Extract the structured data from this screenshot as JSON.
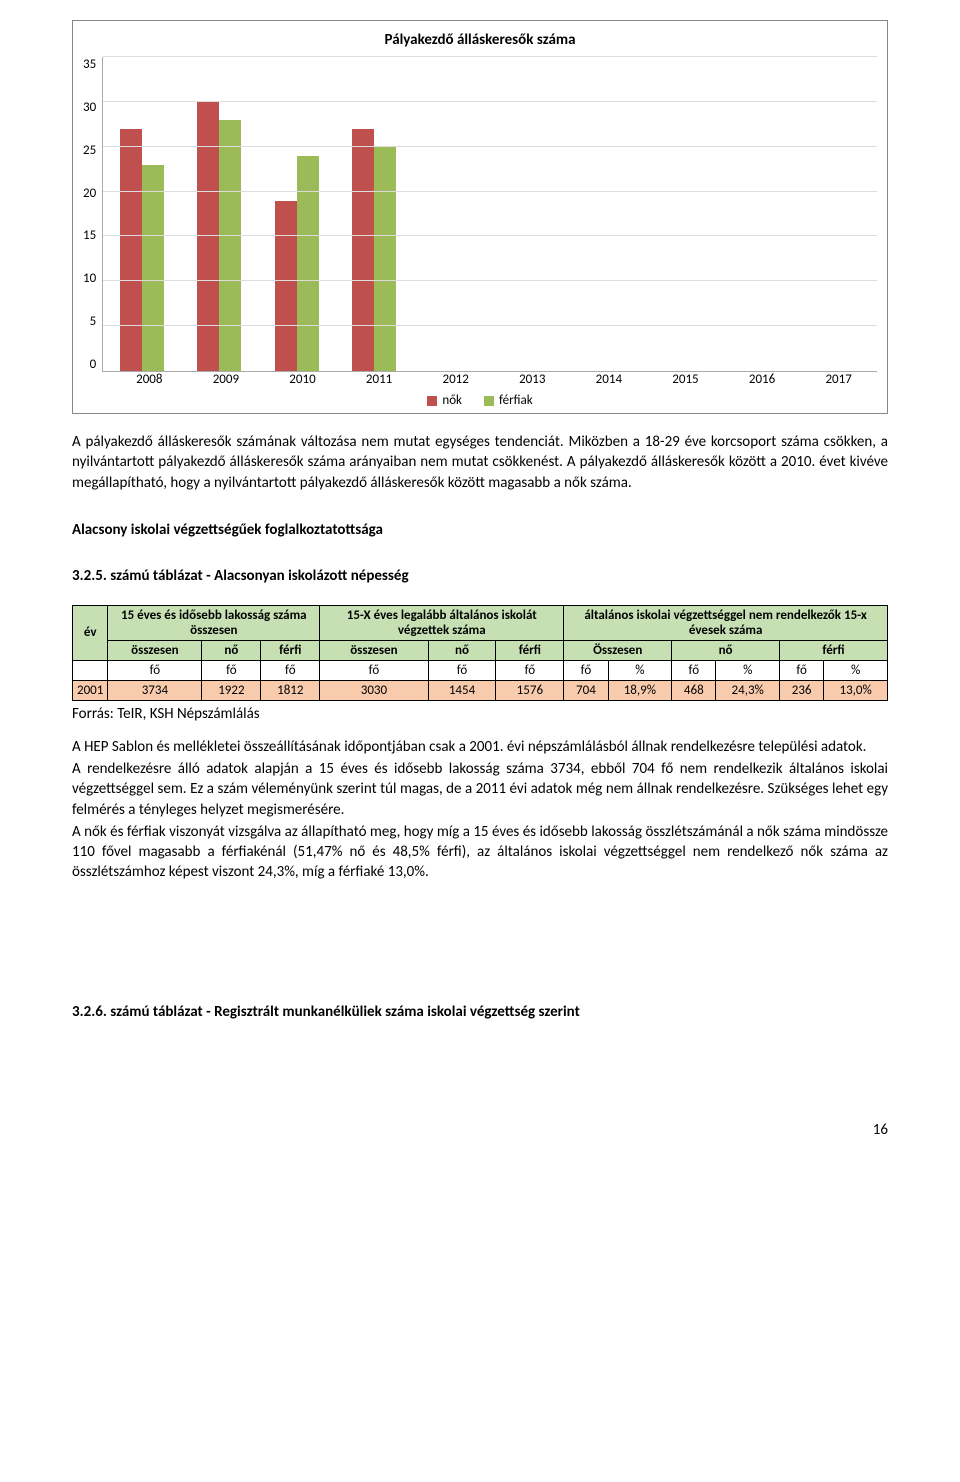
{
  "chart": {
    "title": "Pályakezdő álláskeresők száma",
    "type": "bar",
    "ylim": [
      0,
      35
    ],
    "ytick_step": 5,
    "yticks": [
      "35",
      "30",
      "25",
      "20",
      "15",
      "10",
      "5",
      "0"
    ],
    "categories": [
      "2008",
      "2009",
      "2010",
      "2011",
      "2012",
      "2013",
      "2014",
      "2015",
      "2016",
      "2017"
    ],
    "series": [
      {
        "name": "nők",
        "color": "#c0504d",
        "values": [
          27,
          30,
          19,
          27,
          0,
          0,
          0,
          0,
          0,
          0
        ]
      },
      {
        "name": "férfiak",
        "color": "#9bbb59",
        "values": [
          23,
          28,
          24,
          25,
          0,
          0,
          0,
          0,
          0,
          0
        ]
      }
    ],
    "grid_color": "#dddddd",
    "axis_color": "#aaaaaa",
    "background_color": "#ffffff",
    "label_fontsize": 13,
    "title_fontsize": 15
  },
  "para1": "A pályakezdő álláskeresők számának változása nem mutat egységes tendenciát. Miközben a 18-29 éve korcsoport száma csökken, a nyilvántartott pályakezdő álláskeresők száma arányaiban nem mutat csökkenést. A pályakezdő álláskeresők között a 2010. évet kivéve megállapítható, hogy a nyilvántartott pályakezdő álláskeresők között magasabb a nők száma.",
  "heading1": "Alacsony iskolai végzettségűek foglalkoztatottsága",
  "table_title": "3.2.5. számú táblázat - Alacsonyan iskolázott népesség",
  "table": {
    "head": {
      "col_ev": "év",
      "col_a": "15 éves és idősebb lakosság száma összesen",
      "col_b": "15-X éves legalább általános iskolát végzettek száma",
      "col_c": "általános iskolai végzettséggel nem rendelkezők 15-x évesek száma",
      "sub_osszesen": "összesen",
      "sub_no": "nő",
      "sub_ferfi": "férfi",
      "sub_Osszesen": "Összesen",
      "unit_fo": "fő",
      "unit_pct": "%"
    },
    "row": {
      "ev": "2001",
      "a_ossz": "3734",
      "a_no": "1922",
      "a_ferfi": "1812",
      "b_ossz": "3030",
      "b_no": "1454",
      "b_ferfi": "1576",
      "c_ossz_fo": "704",
      "c_ossz_pct": "18,9%",
      "c_no_fo": "468",
      "c_no_pct": "24,3%",
      "c_ferfi_fo": "236",
      "c_ferfi_pct": "13,0%"
    },
    "colors": {
      "green": "#c6e0b4",
      "tan": "#f8cbad"
    }
  },
  "source": "Forrás: TeIR, KSH Népszámlálás",
  "para2": "A HEP Sablon és mellékletei összeállításának időpontjában csak a 2001. évi népszámlálásból állnak rendelkezésre települési adatok.",
  "para3": "A rendelkezésre álló adatok alapján a 15 éves és idősebb lakosság száma 3734, ebből 704 fő nem rendelkezik általános iskolai végzettséggel sem.  Ez a szám véleményünk szerint túl magas, de a 2011 évi adatok még nem állnak rendelkezésre. Szükséges lehet egy felmérés a tényleges helyzet megismerésére.",
  "para4": "A nők és férfiak viszonyát vizsgálva az állapítható meg, hogy míg a 15 éves és idősebb lakosság összlétszámánál a nők száma mindössze 110 fővel magasabb a férfiakénál (51,47% nő és 48,5% férfi), az általános iskolai végzettséggel nem rendelkező nők száma az összlétszámhoz képest viszont 24,3%, míg a férfiaké 13,0%.",
  "heading2": "3.2.6. számú táblázat - Regisztrált munkanélküliek száma iskolai végzettség szerint",
  "page_number": "16"
}
